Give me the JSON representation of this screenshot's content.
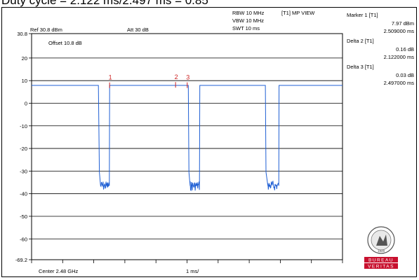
{
  "caption": "Duty cycle = 2.122 ms/2.497 ms = 0.85",
  "header": {
    "ref_level": "Ref 30.8 dBm",
    "attenuation": "Att  30 dB",
    "rbw": "RBW 10 MHz",
    "vbw": "VBW 10 MHz",
    "swt": "SWT 10 ms",
    "view_mode": "[T1] MP VIEW"
  },
  "offset_label": "Offset 10.8 dB",
  "footer": {
    "center": "Center 2.48 GHz",
    "scale": "1 ms/"
  },
  "markers_panel": [
    {
      "title": "Marker 1 [T1]",
      "value1": "7.97 dBm",
      "value2": "2.509000 ms"
    },
    {
      "title": "Delta 2 [T1]",
      "value1": "0.16 dB",
      "value2": "2.122000 ms"
    },
    {
      "title": "Delta 3 [T1]",
      "value1": "0.03 dB",
      "value2": "2.497000 ms"
    }
  ],
  "logo": {
    "name": "bureau-veritas-logo",
    "text_top": "BUREAU",
    "text_bottom": "VERITAS",
    "year": "1828"
  },
  "colors": {
    "trace": "#1f5fd4",
    "marker": "#cc2222",
    "grid": "#000000"
  },
  "chart_data": {
    "type": "line",
    "title": "",
    "xlabel": "Center 2.48 GHz",
    "ylabel": "",
    "x_unit": "ms",
    "xlim": [
      0,
      10
    ],
    "ylim": [
      -69.2,
      30.8
    ],
    "x_ticks": [
      0,
      1,
      2,
      3,
      4,
      5,
      6,
      7,
      8,
      9,
      10
    ],
    "y_ticks": [
      30.8,
      20,
      10,
      0,
      -10,
      -20,
      -30,
      -40,
      -50,
      -60,
      -69.2
    ],
    "y_tick_labels": [
      "30.8",
      "20",
      "10",
      "0",
      "-10",
      "-20",
      "-30",
      "-40",
      "-50",
      "-60",
      "-69.2"
    ],
    "grid": true,
    "series": [
      {
        "values_description": "pulsed trace",
        "x": [
          0.0,
          2.15,
          2.18,
          2.22,
          2.5,
          2.51,
          5.04,
          5.06,
          5.1,
          5.4,
          5.41,
          7.52,
          7.54,
          7.6,
          7.95,
          7.96,
          10.0
        ],
        "y": [
          7.9,
          7.9,
          -30.5,
          -36.5,
          -36.5,
          7.9,
          7.9,
          -30.5,
          -36.5,
          -36.5,
          7.9,
          7.9,
          -30.5,
          -36.5,
          -36.5,
          7.9,
          7.9
        ]
      }
    ],
    "pulse_on_level": 7.97,
    "noise_floor": -36.5,
    "markers": [
      {
        "label": "1",
        "x": 2.509,
        "y": 7.97
      },
      {
        "label": "2",
        "x": 4.631,
        "y": 8.13
      },
      {
        "label": "3",
        "x": 5.006,
        "y": 8.0
      }
    ]
  }
}
